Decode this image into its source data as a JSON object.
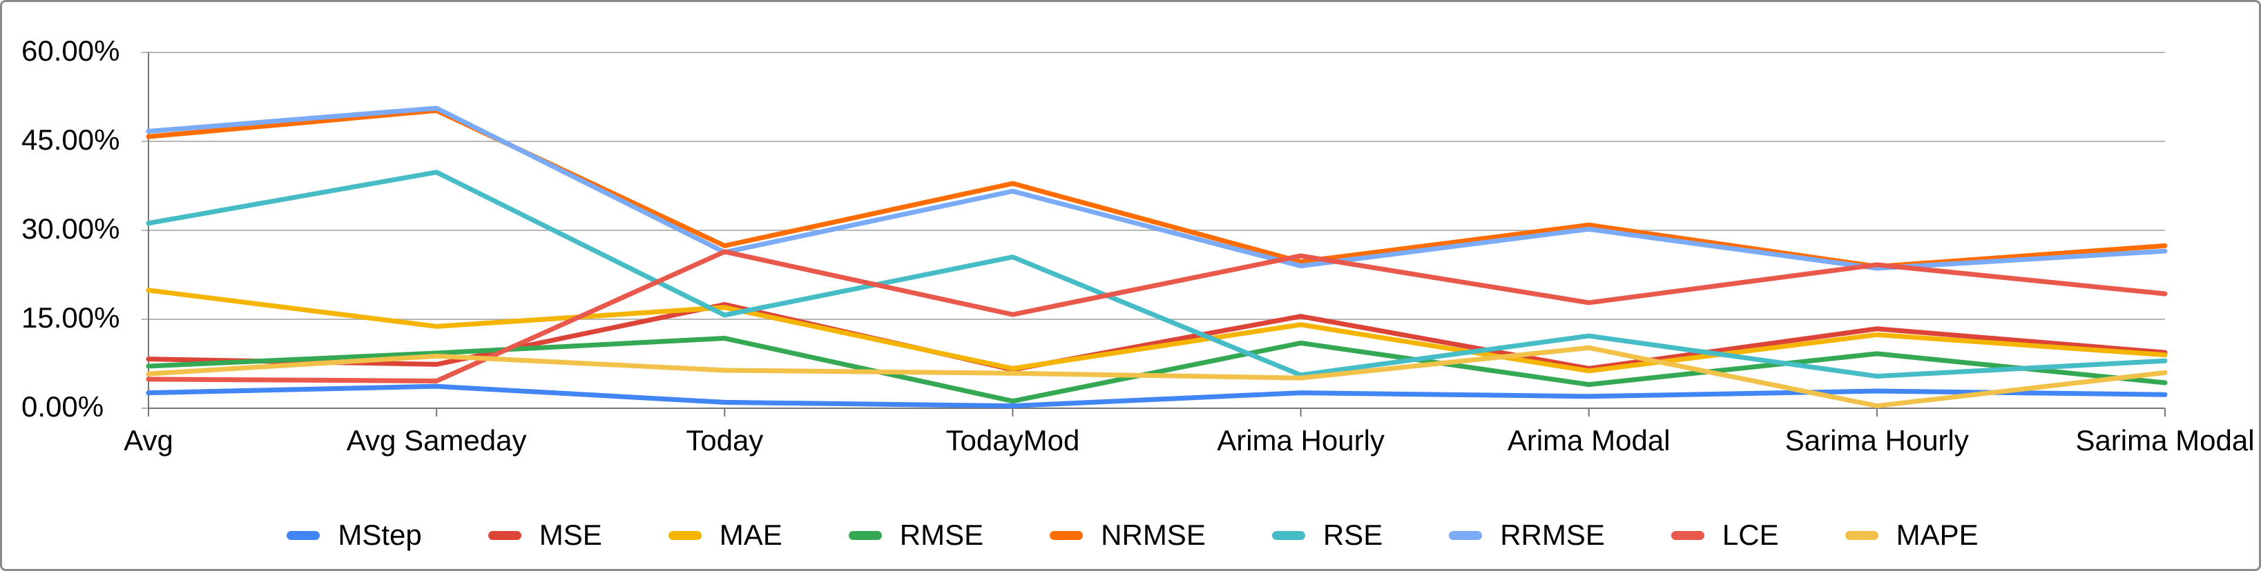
{
  "chart_data": {
    "type": "line",
    "title": "",
    "xlabel": "",
    "ylabel": "",
    "ylim": [
      0,
      60
    ],
    "grid": true,
    "legend_position": "bottom",
    "y_tick_labels": [
      "60.00%",
      "45.00%",
      "30.00%",
      "15.00%",
      "0.00%"
    ],
    "y_tick_values": [
      60,
      45,
      30,
      15,
      0
    ],
    "categories": [
      "Avg",
      "Avg Sameday",
      "Today",
      "TodayMod",
      "Arima Hourly",
      "Arima Modal",
      "Sarima Hourly",
      "Sarima Modal"
    ],
    "series": [
      {
        "name": "MStep",
        "color": "#4285F4",
        "values": [
          2.6,
          3.7,
          1.0,
          0.4,
          2.6,
          2.0,
          2.9,
          2.3
        ]
      },
      {
        "name": "MSE",
        "color": "#DB4437",
        "values": [
          8.3,
          7.4,
          17.5,
          6.5,
          15.5,
          6.7,
          13.4,
          9.4
        ]
      },
      {
        "name": "MAE",
        "color": "#F4B400",
        "values": [
          19.9,
          13.8,
          17.0,
          6.7,
          14.1,
          6.3,
          12.4,
          9.0
        ]
      },
      {
        "name": "RMSE",
        "color": "#34A853",
        "values": [
          7.1,
          9.3,
          11.8,
          1.2,
          11.0,
          4.0,
          9.2,
          4.3
        ]
      },
      {
        "name": "NRMSE",
        "color": "#FF6D01",
        "values": [
          45.8,
          50.2,
          27.4,
          37.9,
          24.7,
          30.9,
          23.9,
          27.4
        ]
      },
      {
        "name": "RSE",
        "color": "#46BDC6",
        "values": [
          31.2,
          39.8,
          15.7,
          25.5,
          5.6,
          12.2,
          5.4,
          8.0
        ]
      },
      {
        "name": "RRMSE",
        "color": "#7BAAF7",
        "values": [
          46.7,
          50.6,
          26.3,
          36.6,
          24.0,
          30.2,
          23.6,
          26.5
        ]
      },
      {
        "name": "LCE",
        "color": "#E8594B",
        "values": [
          4.9,
          4.6,
          26.4,
          15.8,
          25.7,
          17.8,
          24.2,
          19.3
        ]
      },
      {
        "name": "MAPE",
        "color": "#F2C14A",
        "values": [
          5.8,
          8.8,
          6.4,
          5.9,
          5.1,
          10.2,
          0.4,
          6.0
        ]
      }
    ],
    "colors": {
      "gridline": "#b7b7b7",
      "axis": "#757575",
      "label_text": "#000000",
      "background": "#ffffff",
      "frame_border": "#8a8a8a"
    }
  }
}
